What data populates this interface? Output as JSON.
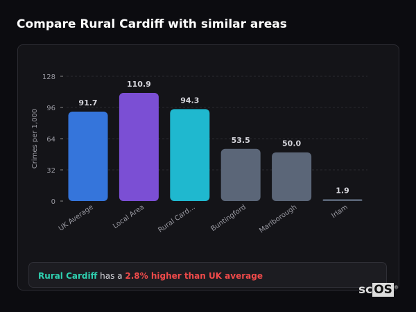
{
  "title": "Compare Rural Cardiff with similar areas",
  "chart_data": {
    "type": "bar",
    "categories": [
      "UK Average",
      "Local Area",
      "Rural Card...",
      "Buntingford",
      "Marlborough",
      "Irlam"
    ],
    "values": [
      91.7,
      110.9,
      94.3,
      53.5,
      50.0,
      1.9
    ],
    "value_labels": [
      "91.7",
      "110.9",
      "94.3",
      "53.5",
      "50.0",
      "1.9"
    ],
    "colors": [
      "#3575db",
      "#7b4fd4",
      "#1fb8cf",
      "#5b6678",
      "#5b6678",
      "#5b6678"
    ],
    "ylabel": "Crimes per 1,000",
    "xlabel": "",
    "ylim": [
      0,
      128
    ],
    "yticks": [
      0,
      32,
      64,
      96,
      128
    ],
    "grid": true
  },
  "footer": {
    "place": "Rural Cardiff",
    "middle": " has a ",
    "highlight": "2.8% higher than UK average"
  },
  "logo": "scOS"
}
